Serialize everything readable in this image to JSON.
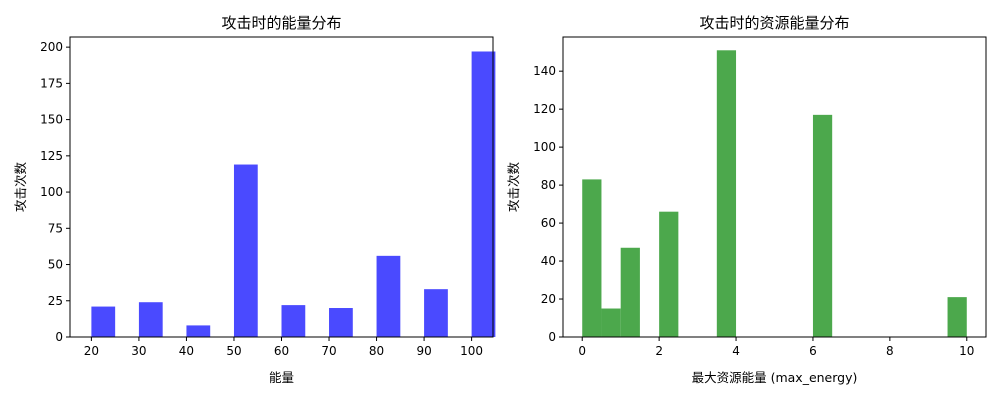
{
  "chart_data": [
    {
      "type": "bar",
      "title": "攻击时的能量分布",
      "xlabel": "能量",
      "ylabel": "攻击次数",
      "xlim": [
        15.5,
        104.5
      ],
      "ylim": [
        0,
        207
      ],
      "xticks": [
        20,
        30,
        40,
        50,
        60,
        70,
        80,
        90,
        100
      ],
      "yticks": [
        0,
        25,
        50,
        75,
        100,
        125,
        150,
        175,
        200
      ],
      "bin_width": 5,
      "color": "#4a4aff",
      "bins": [
        {
          "x": 20,
          "value": 21
        },
        {
          "x": 30,
          "value": 24
        },
        {
          "x": 40,
          "value": 8
        },
        {
          "x": 50,
          "value": 119
        },
        {
          "x": 60,
          "value": 22
        },
        {
          "x": 70,
          "value": 20
        },
        {
          "x": 80,
          "value": 56
        },
        {
          "x": 90,
          "value": 33
        },
        {
          "x": 100,
          "value": 197
        }
      ]
    },
    {
      "type": "bar",
      "title": "攻击时的资源能量分布",
      "xlabel": "最大资源能量 (max_energy)",
      "ylabel": "攻击次数",
      "xlim": [
        -0.5,
        10.5
      ],
      "ylim": [
        0,
        158
      ],
      "xticks": [
        0,
        2,
        4,
        6,
        8,
        10
      ],
      "yticks": [
        0,
        20,
        40,
        60,
        80,
        100,
        120,
        140
      ],
      "bin_width": 0.5,
      "color": "#4ca84c",
      "bins": [
        {
          "x": 0,
          "value": 83
        },
        {
          "x": 0.5,
          "value": 15
        },
        {
          "x": 1,
          "value": 47
        },
        {
          "x": 2,
          "value": 66
        },
        {
          "x": 3.5,
          "value": 151
        },
        {
          "x": 6,
          "value": 117
        },
        {
          "x": 9.5,
          "value": 21
        }
      ]
    }
  ]
}
